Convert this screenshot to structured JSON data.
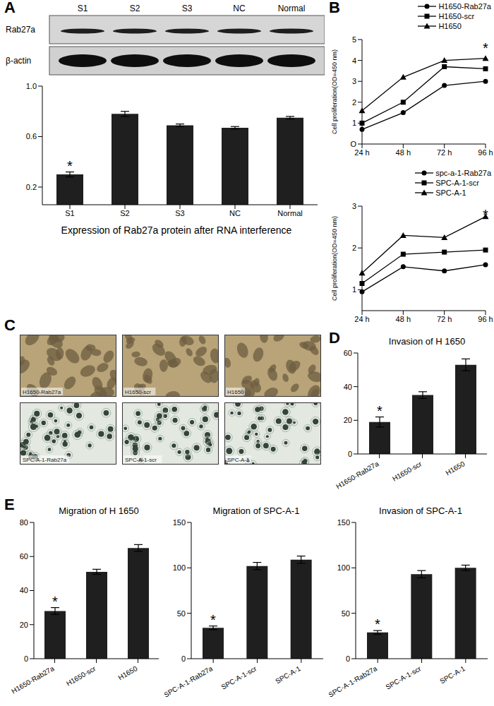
{
  "blot": {
    "panel": "A",
    "lanes": [
      "S1",
      "S2",
      "S3",
      "NC",
      "Normal"
    ],
    "rows": [
      "Rab27a",
      "β-actin"
    ]
  },
  "micrographs": {
    "panel": "C",
    "images": [
      [
        "H1650-Rab27a",
        "H1650-scr",
        "H1650"
      ],
      [
        "SPC-A-1-Rab27a",
        "SPC-A-1-scr",
        "SPC-A-1"
      ]
    ]
  },
  "chart_data": [
    {
      "panel": "A",
      "type": "bar",
      "xlabel": "Expression of  Rab27a protein after RNA interference",
      "categories": [
        "S1",
        "S2",
        "S3",
        "NC",
        "Normal"
      ],
      "values": [
        0.3,
        0.78,
        0.69,
        0.67,
        0.75
      ],
      "errors": [
        0.02,
        0.02,
        0.01,
        0.01,
        0.01
      ],
      "color": "#1f1f1f",
      "ylim": [
        0.06,
        1.0
      ],
      "yticks": [
        0.2,
        0.6,
        {
          "value": 1,
          "label": "1.0"
        }
      ],
      "annotations": [
        {
          "category": "S1",
          "text": "*"
        }
      ]
    },
    {
      "panel": "B",
      "type": "line",
      "ylabel": "Cell proliferation(OD=450 nm)",
      "categories": [
        "24 h",
        "48 h",
        "72 h",
        "96 h"
      ],
      "series": [
        {
          "name": "H1650-Rab27a",
          "color": "#000000",
          "marker": "circle",
          "values": [
            0.7,
            1.5,
            2.8,
            3.0
          ]
        },
        {
          "name": "H1650-scr",
          "color": "#000000",
          "marker": "square",
          "values": [
            1.0,
            2.0,
            3.7,
            3.6
          ]
        },
        {
          "name": "H1650",
          "color": "#000000",
          "marker": "triangle",
          "values": [
            1.6,
            3.2,
            4.0,
            4.1
          ]
        }
      ],
      "ylim": [
        0,
        5
      ],
      "yticks": [
        {
          "value": 0,
          "label": "O"
        },
        1,
        2,
        3,
        4,
        5
      ],
      "annotations": [
        {
          "category": "96 h",
          "text": "*"
        }
      ]
    },
    {
      "type": "line",
      "ylabel": "Cell proliferation(OD=450 nm)",
      "categories": [
        "24 h",
        "48 h",
        "72 h",
        "96 h"
      ],
      "series": [
        {
          "name": "spc-a-1-Rab27a",
          "color": "#000000",
          "marker": "circle",
          "values": [
            0.95,
            1.55,
            1.45,
            1.6
          ]
        },
        {
          "name": "SPC-A-1-scr",
          "color": "#000000",
          "marker": "square",
          "values": [
            1.15,
            1.85,
            1.9,
            1.95
          ]
        },
        {
          "name": "SPC-A-1",
          "color": "#000000",
          "marker": "triangle",
          "values": [
            1.4,
            2.3,
            2.25,
            2.75
          ]
        }
      ],
      "ylim": [
        0.5,
        3
      ],
      "yticks": [
        1,
        2,
        3
      ],
      "annotations": [
        {
          "category": "96 h",
          "text": "*"
        }
      ]
    },
    {
      "panel": "D",
      "type": "bar",
      "title": "Invasion of H 1650",
      "categories": [
        "H1650-Rab27a",
        "H1650-scr",
        "H1650"
      ],
      "values": [
        19,
        35,
        53
      ],
      "errors": [
        3,
        2,
        3.5
      ],
      "color": "#1f1f1f",
      "ylim": [
        0,
        60
      ],
      "yticks": [
        0,
        20,
        40,
        60
      ],
      "annotations": [
        {
          "category": "H1650-Rab27a",
          "text": "*"
        }
      ]
    },
    {
      "panel": "E",
      "type": "bar",
      "title": "Migration of H 1650",
      "categories": [
        "H1650-Rab27a",
        "H1650-scr",
        "H1650"
      ],
      "values": [
        28,
        51,
        65
      ],
      "errors": [
        2,
        1.5,
        2
      ],
      "color": "#1f1f1f",
      "ylim": [
        0,
        80
      ],
      "yticks": [
        0,
        20,
        40,
        60,
        80
      ],
      "annotations": [
        {
          "category": "H1650-Rab27a",
          "text": "*"
        }
      ]
    },
    {
      "type": "bar",
      "title": "Migration of SPC-A-1",
      "categories": [
        "SPC-A-1-Rab27a",
        "SPC-A-1-scr",
        "SPC-A-1"
      ],
      "values": [
        34,
        102,
        109
      ],
      "errors": [
        2,
        4,
        4
      ],
      "color": "#1f1f1f",
      "ylim": [
        0,
        150
      ],
      "yticks": [
        0,
        50,
        100,
        150
      ],
      "annotations": [
        {
          "category": "SPC-A-1-Rab27a",
          "text": "*"
        }
      ]
    },
    {
      "type": "bar",
      "title": "Invasion of SPC-A-1",
      "categories": [
        "SPC-A-1-Rab27a",
        "SPC-A-1-scr",
        "SPC-A-1"
      ],
      "values": [
        29,
        93,
        100
      ],
      "errors": [
        2,
        4,
        3
      ],
      "color": "#1f1f1f",
      "ylim": [
        0,
        150
      ],
      "yticks": [
        0,
        50,
        100,
        150
      ],
      "annotations": [
        {
          "category": "SPC-A-1-Rab27a",
          "text": "*"
        }
      ]
    }
  ]
}
